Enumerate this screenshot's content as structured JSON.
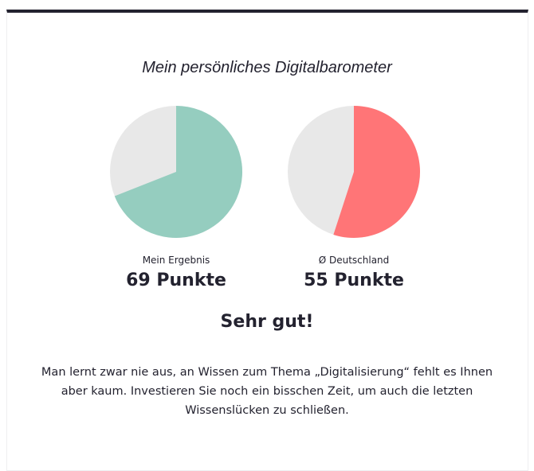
{
  "title": "Mein persönliches Digitalbarometer",
  "chart_data": {
    "type": "pie",
    "charts": [
      {
        "label": "Mein Ergebnis",
        "value": 69,
        "max": 100,
        "value_text": "69 Punkte",
        "color": "#95cdbf",
        "rest_color": "#e8e8e8"
      },
      {
        "label": "Ø Deutschland",
        "value": 55,
        "max": 100,
        "value_text": "55 Punkte",
        "color": "#ff7577",
        "rest_color": "#e8e8e8"
      }
    ]
  },
  "verdict": "Sehr gut!",
  "description": "Man lernt zwar nie aus, an Wissen zum Thema „Digitalisierung“ fehlt es Ihnen aber kaum. Investieren Sie noch ein bisschen Zeit, um auch die letzten Wissenslücken zu schließen."
}
